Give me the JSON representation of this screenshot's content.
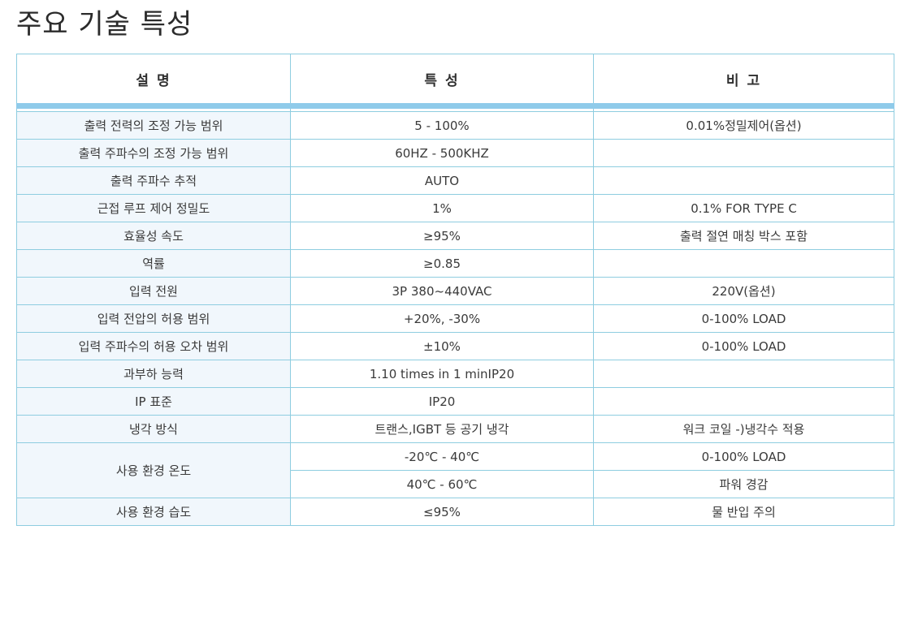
{
  "title": "주요 기술 특성",
  "columns": {
    "description": "설 명",
    "characteristic": "특 성",
    "remark": "비 고"
  },
  "rows": [
    {
      "description": "출력 전력의 조정 가능 범위",
      "characteristic": "5 - 100%",
      "remark": "0.01%정밀제어(옵션)"
    },
    {
      "description": "출력 주파수의 조정 가능 범위",
      "characteristic": "60HZ - 500KHZ",
      "remark": ""
    },
    {
      "description": "출력 주파수 추적",
      "characteristic": "AUTO",
      "remark": ""
    },
    {
      "description": "근접 루프 제어 정밀도",
      "characteristic": "1%",
      "remark": "0.1% FOR TYPE C"
    },
    {
      "description": "효율성 속도",
      "characteristic": "≥95%",
      "remark": "출력 절연 매칭 박스 포함"
    },
    {
      "description": "역률",
      "characteristic": "≥0.85",
      "remark": ""
    },
    {
      "description": "입력 전원",
      "characteristic": "3P 380~440VAC",
      "remark": "220V(옵션)"
    },
    {
      "description": "입력 전압의 허용 범위",
      "characteristic": "+20%, -30%",
      "remark": "0-100% LOAD"
    },
    {
      "description": "입력 주파수의 허용 오차 범위",
      "characteristic": "±10%",
      "remark": "0-100% LOAD"
    },
    {
      "description": "과부하 능력",
      "characteristic": "1.10 times in 1 minIP20",
      "remark": ""
    },
    {
      "description": "IP 표준",
      "characteristic": "IP20",
      "remark": ""
    },
    {
      "description": "냉각 방식",
      "characteristic": "트랜스,IGBT 등 공기 냉각",
      "remark": "워크 코일 -)냉각수 적용"
    }
  ],
  "temperature": {
    "description": "사용 환경 온도",
    "sub_rows": [
      {
        "characteristic": "-20℃ - 40℃",
        "remark": "0-100% LOAD"
      },
      {
        "characteristic": "40℃ - 60℃",
        "remark": "파워 경감"
      }
    ]
  },
  "humidity": {
    "description": "사용 환경 습도",
    "characteristic": "≤95%",
    "remark": "물 반입 주의"
  }
}
